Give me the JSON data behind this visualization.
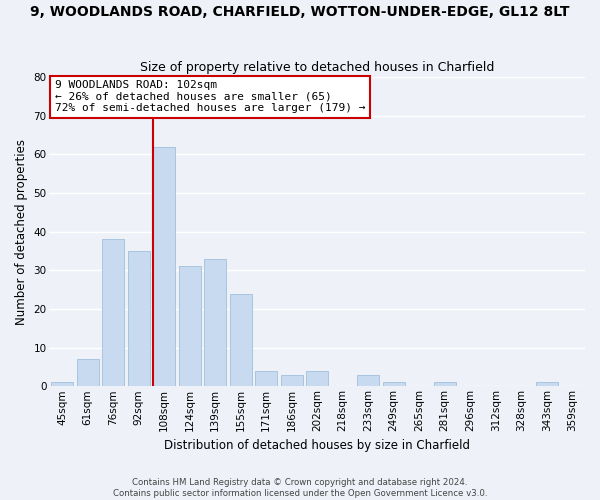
{
  "title": "9, WOODLANDS ROAD, CHARFIELD, WOTTON-UNDER-EDGE, GL12 8LT",
  "subtitle": "Size of property relative to detached houses in Charfield",
  "xlabel": "Distribution of detached houses by size in Charfield",
  "ylabel": "Number of detached properties",
  "bar_labels": [
    "45sqm",
    "61sqm",
    "76sqm",
    "92sqm",
    "108sqm",
    "124sqm",
    "139sqm",
    "155sqm",
    "171sqm",
    "186sqm",
    "202sqm",
    "218sqm",
    "233sqm",
    "249sqm",
    "265sqm",
    "281sqm",
    "296sqm",
    "312sqm",
    "328sqm",
    "343sqm",
    "359sqm"
  ],
  "bar_values": [
    1,
    7,
    38,
    35,
    62,
    31,
    33,
    24,
    4,
    3,
    4,
    0,
    3,
    1,
    0,
    1,
    0,
    0,
    0,
    1,
    0
  ],
  "bar_color": "#c8daf0",
  "bar_edge_color": "#a0bfdd",
  "highlight_bar_index": 4,
  "highlight_color": "#cc0000",
  "ylim": [
    0,
    80
  ],
  "yticks": [
    0,
    10,
    20,
    30,
    40,
    50,
    60,
    70,
    80
  ],
  "annotation_text": "9 WOODLANDS ROAD: 102sqm\n← 26% of detached houses are smaller (65)\n72% of semi-detached houses are larger (179) →",
  "annotation_box_color": "#ffffff",
  "annotation_box_edge_color": "#cc0000",
  "footer_line1": "Contains HM Land Registry data © Crown copyright and database right 2024.",
  "footer_line2": "Contains public sector information licensed under the Open Government Licence v3.0.",
  "background_color": "#eef2f8",
  "grid_color": "#ffffff",
  "title_fontsize": 10,
  "subtitle_fontsize": 9,
  "axis_label_fontsize": 8.5,
  "tick_fontsize": 7.5,
  "annotation_fontsize": 8
}
